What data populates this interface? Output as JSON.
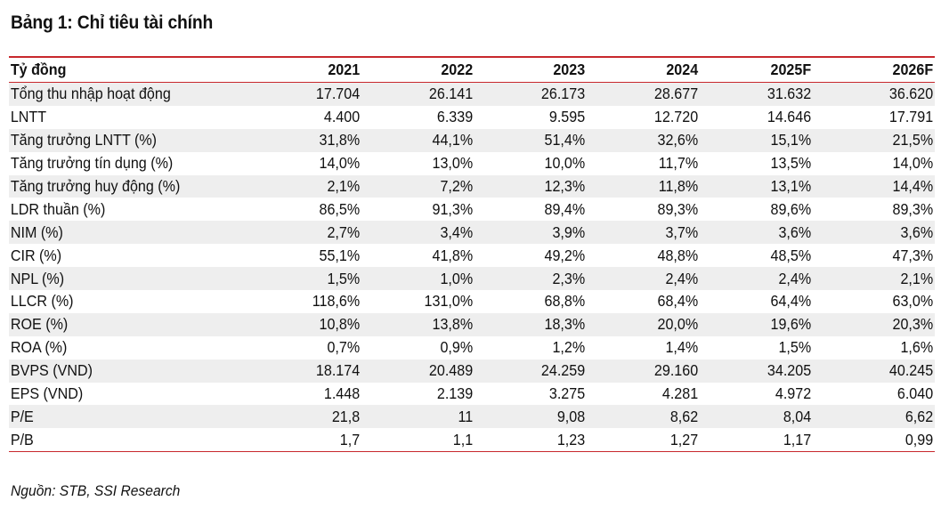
{
  "title": "Bảng 1: Chỉ tiêu tài chính",
  "header": {
    "label": "Tỷ đồng",
    "columns": [
      "2021",
      "2022",
      "2023",
      "2024",
      "2025F",
      "2026F"
    ]
  },
  "rows": [
    {
      "label": "Tổng thu nhập hoạt động",
      "values": [
        "17.704",
        "26.141",
        "26.173",
        "28.677",
        "31.632",
        "36.620"
      ]
    },
    {
      "label": "LNTT",
      "values": [
        "4.400",
        "6.339",
        "9.595",
        "12.720",
        "14.646",
        "17.791"
      ]
    },
    {
      "label": "Tăng trưởng LNTT (%)",
      "values": [
        "31,8%",
        "44,1%",
        "51,4%",
        "32,6%",
        "15,1%",
        "21,5%"
      ]
    },
    {
      "label": "Tăng trưởng tín dụng (%)",
      "values": [
        "14,0%",
        "13,0%",
        "10,0%",
        "11,7%",
        "13,5%",
        "14,0%"
      ]
    },
    {
      "label": "Tăng trưởng huy động (%)",
      "values": [
        "2,1%",
        "7,2%",
        "12,3%",
        "11,8%",
        "13,1%",
        "14,4%"
      ]
    },
    {
      "label": "LDR thuần (%)",
      "values": [
        "86,5%",
        "91,3%",
        "89,4%",
        "89,3%",
        "89,6%",
        "89,3%"
      ]
    },
    {
      "label": "NIM (%)",
      "values": [
        "2,7%",
        "3,4%",
        "3,9%",
        "3,7%",
        "3,6%",
        "3,6%"
      ]
    },
    {
      "label": "CIR (%)",
      "values": [
        "55,1%",
        "41,8%",
        "49,2%",
        "48,8%",
        "48,5%",
        "47,3%"
      ]
    },
    {
      "label": "NPL (%)",
      "values": [
        "1,5%",
        "1,0%",
        "2,3%",
        "2,4%",
        "2,4%",
        "2,1%"
      ]
    },
    {
      "label": "LLCR (%)",
      "values": [
        "118,6%",
        "131,0%",
        "68,8%",
        "68,4%",
        "64,4%",
        "63,0%"
      ]
    },
    {
      "label": "ROE (%)",
      "values": [
        "10,8%",
        "13,8%",
        "18,3%",
        "20,0%",
        "19,6%",
        "20,3%"
      ]
    },
    {
      "label": "ROA (%)",
      "values": [
        "0,7%",
        "0,9%",
        "1,2%",
        "1,4%",
        "1,5%",
        "1,6%"
      ]
    },
    {
      "label": "BVPS (VND)",
      "values": [
        "18.174",
        "20.489",
        "24.259",
        "29.160",
        "34.205",
        "40.245"
      ]
    },
    {
      "label": "EPS (VND)",
      "values": [
        "1.448",
        "2.139",
        "3.275",
        "4.281",
        "4.972",
        "6.040"
      ]
    },
    {
      "label": "P/E",
      "values": [
        "21,8",
        "11",
        "9,08",
        "8,62",
        "8,04",
        "6,62"
      ]
    },
    {
      "label": "P/B",
      "values": [
        "1,7",
        "1,1",
        "1,23",
        "1,27",
        "1,17",
        "0,99"
      ]
    }
  ],
  "source": "Nguồn: STB, SSI Research",
  "colors": {
    "rule": "#c8282d",
    "shade": "#eeeeee"
  }
}
